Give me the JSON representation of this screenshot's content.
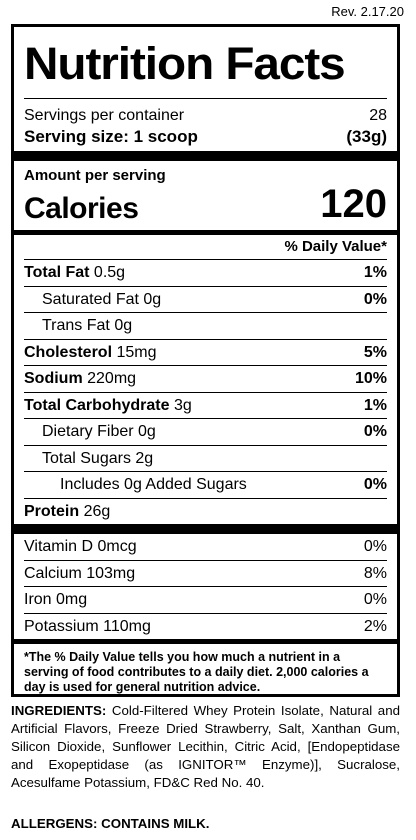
{
  "revision": "Rev. 2.17.20",
  "title": "Nutrition Facts",
  "servings": {
    "per_container_label": "Servings per container",
    "per_container_value": "28",
    "size_label": "Serving size: 1 scoop",
    "size_value": "(33g)"
  },
  "calories": {
    "amount_label": "Amount per serving",
    "label": "Calories",
    "value": "120"
  },
  "daily_value_header": "% Daily Value*",
  "nutrients": [
    {
      "bold": "Total Fat",
      "amount": " 0.5g",
      "pct": "1%"
    },
    {
      "name": "Saturated Fat 0g",
      "pct": "0%"
    },
    {
      "name": "Trans Fat 0g",
      "pct": ""
    },
    {
      "bold": "Cholesterol",
      "amount": " 15mg",
      "pct": "5%"
    },
    {
      "bold": "Sodium",
      "amount": " 220mg",
      "pct": "10%"
    },
    {
      "bold": "Total Carbohydrate",
      "amount": " 3g",
      "pct": "1%"
    },
    {
      "name": "Dietary Fiber 0g",
      "pct": "0%"
    },
    {
      "name": "Total Sugars 2g",
      "pct": ""
    },
    {
      "name": "Includes 0g Added Sugars",
      "pct": "0%"
    },
    {
      "bold": "Protein",
      "amount": " 26g",
      "pct": ""
    }
  ],
  "vitamins": [
    {
      "name": "Vitamin D 0mcg",
      "pct": "0%"
    },
    {
      "name": "Calcium 103mg",
      "pct": "8%"
    },
    {
      "name": "Iron 0mg",
      "pct": "0%"
    },
    {
      "name": "Potassium 110mg",
      "pct": "2%"
    }
  ],
  "footnote": "*The % Daily Value tells you how much a nutrient in a serving of food contributes to a daily diet. 2,000 calories a day is used for general nutrition advice.",
  "ingredients_label": "INGREDIENTS:",
  "ingredients_text": " Cold-Filtered Whey Protein Isolate, Natural and Artificial Flavors, Freeze Dried Strawberry, Salt, Xanthan Gum, Silicon Dioxide, Sunflower Lecithin, Citric Acid, [Endopeptidase and Exopeptidase (as IGNITOR™ Enzyme)], Sucralose, Acesulfame Potassium, FD&C Red No. 40.",
  "allergens": "ALLERGENS: CONTAINS MILK."
}
